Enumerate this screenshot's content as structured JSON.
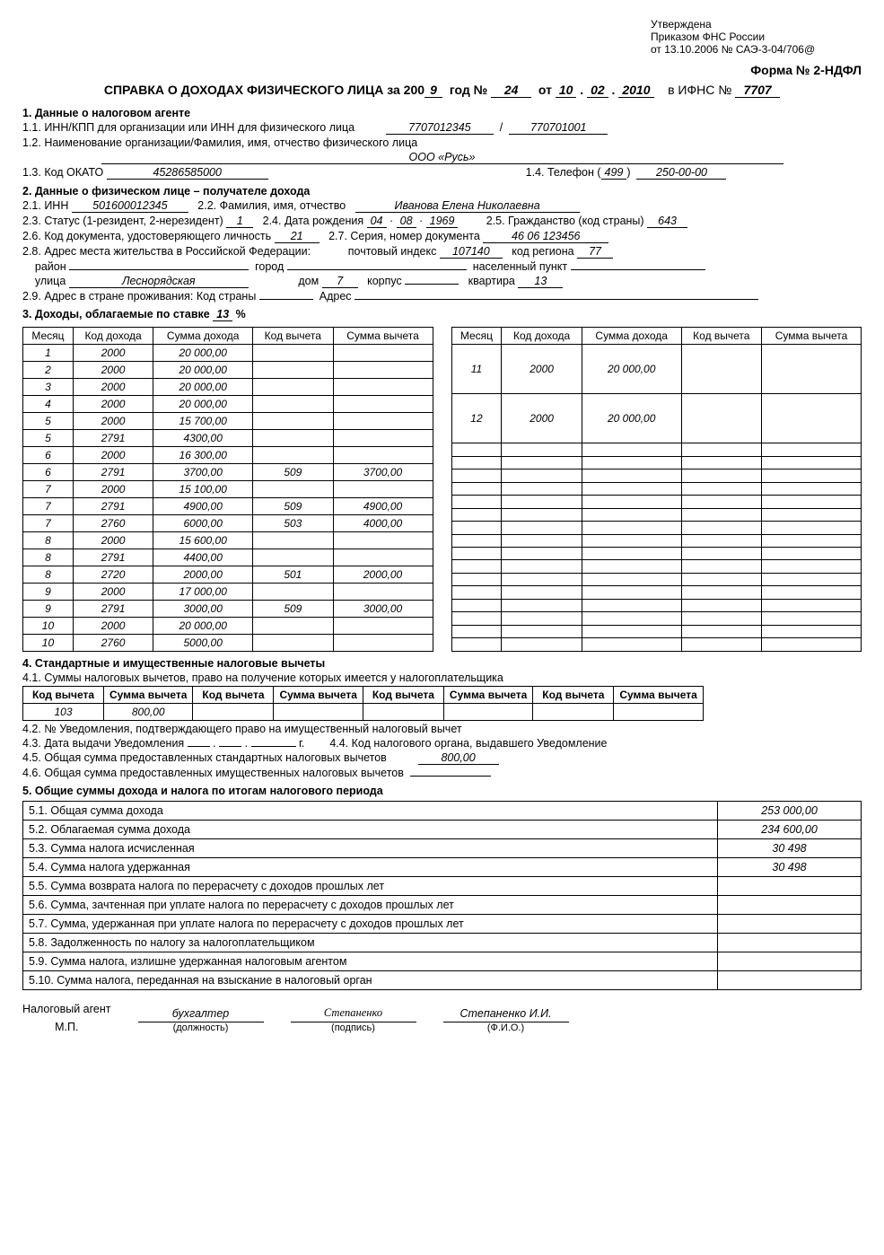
{
  "approval": {
    "line1": "Утверждена",
    "line2": "Приказом ФНС России",
    "line3": "от 13.10.2006 № САЭ-3-04/706@"
  },
  "form_no_label": "Форма № 2-НДФЛ",
  "title": {
    "prefix": "СПРАВКА О ДОХОДАХ ФИЗИЧЕСКОГО ЛИЦА за 200",
    "year_suffix": "9",
    "god_no": "год №",
    "no": "24",
    "ot": "от",
    "date_d": "10",
    "date_m": "02",
    "date_y": "2010",
    "ifns_label": "в ИФНС №",
    "ifns": "7707"
  },
  "s1": {
    "header": "1. Данные о налоговом агенте",
    "l11": "1.1. ИНН/КПП для организации или ИНН для физического лица",
    "inn": "7707012345",
    "kpp": "770701001",
    "l12": "1.2. Наименование организации/Фамилия, имя, отчество физического лица",
    "org": "ООО «Русь»",
    "l13": "1.3. Код ОКАТО",
    "okato": "45286585000",
    "l14": "1.4. Телефон (",
    "tel_code": "499",
    "tel_close": ")",
    "tel": "250-00-00"
  },
  "s2": {
    "header": "2. Данные о физическом лице – получателе дохода",
    "l21": "2.1. ИНН",
    "inn": "501600012345",
    "l22": "2.2. Фамилия, имя, отчество",
    "fio": "Иванова Елена Николаевна",
    "l23": "2.3. Статус (1-резидент, 2-нерезидент)",
    "status": "1",
    "l24": "2.4. Дата рождения",
    "dob_d": "04",
    "dob_m": "08",
    "dob_y": "1969",
    "l25": "2.5. Гражданство (код страны)",
    "citizenship": "643",
    "l26": "2.6. Код документа, удостоверяющего личность",
    "doc_code": "21",
    "l27": "2.7. Серия, номер документа",
    "doc_no": "46 06 123456",
    "l28": "2.8. Адрес места жительства в Российской Федерации:",
    "post_label": "почтовый индекс",
    "post": "107140",
    "region_label": "код региона",
    "region": "77",
    "raion": "район",
    "gorod": "город",
    "np": "населенный пункт",
    "ulica_label": "улица",
    "ulica": "Леснорядская",
    "dom_label": "дом",
    "dom": "7",
    "korpus_label": "корпус",
    "korpus": "",
    "kv_label": "квартира",
    "kv": "13",
    "l29": "2.9. Адрес в стране проживания: Код страны",
    "addr_label": "Адрес"
  },
  "s3": {
    "header_prefix": "3. Доходы, облагаемые по ставке",
    "rate": "13",
    "pct": "%",
    "cols": [
      "Месяц",
      "Код дохода",
      "Сумма дохода",
      "Код вычета",
      "Сумма вычета"
    ],
    "left": [
      [
        "1",
        "2000",
        "20 000,00",
        "",
        ""
      ],
      [
        "2",
        "2000",
        "20 000,00",
        "",
        ""
      ],
      [
        "3",
        "2000",
        "20 000,00",
        "",
        ""
      ],
      [
        "4",
        "2000",
        "20 000,00",
        "",
        ""
      ],
      [
        "5",
        "2000",
        "15 700,00",
        "",
        ""
      ],
      [
        "5",
        "2791",
        "4300,00",
        "",
        ""
      ],
      [
        "6",
        "2000",
        "16 300,00",
        "",
        ""
      ],
      [
        "6",
        "2791",
        "3700,00",
        "509",
        "3700,00"
      ],
      [
        "7",
        "2000",
        "15 100,00",
        "",
        ""
      ],
      [
        "7",
        "2791",
        "4900,00",
        "509",
        "4900,00"
      ],
      [
        "7",
        "2760",
        "6000,00",
        "503",
        "4000,00"
      ],
      [
        "8",
        "2000",
        "15 600,00",
        "",
        ""
      ],
      [
        "8",
        "2791",
        "4400,00",
        "",
        ""
      ],
      [
        "8",
        "2720",
        "2000,00",
        "501",
        "2000,00"
      ],
      [
        "9",
        "2000",
        "17 000,00",
        "",
        ""
      ],
      [
        "9",
        "2791",
        "3000,00",
        "509",
        "3000,00"
      ],
      [
        "10",
        "2000",
        "20 000,00",
        "",
        ""
      ],
      [
        "10",
        "2760",
        "5000,00",
        "",
        ""
      ]
    ],
    "right": [
      [
        "11",
        "2000",
        "20 000,00",
        "",
        ""
      ],
      [
        "12",
        "2000",
        "20 000,00",
        "",
        ""
      ],
      [
        "",
        "",
        "",
        "",
        ""
      ],
      [
        "",
        "",
        "",
        "",
        ""
      ],
      [
        "",
        "",
        "",
        "",
        ""
      ],
      [
        "",
        "",
        "",
        "",
        ""
      ],
      [
        "",
        "",
        "",
        "",
        ""
      ],
      [
        "",
        "",
        "",
        "",
        ""
      ],
      [
        "",
        "",
        "",
        "",
        ""
      ],
      [
        "",
        "",
        "",
        "",
        ""
      ],
      [
        "",
        "",
        "",
        "",
        ""
      ],
      [
        "",
        "",
        "",
        "",
        ""
      ],
      [
        "",
        "",
        "",
        "",
        ""
      ],
      [
        "",
        "",
        "",
        "",
        ""
      ],
      [
        "",
        "",
        "",
        "",
        ""
      ],
      [
        "",
        "",
        "",
        "",
        ""
      ],
      [
        "",
        "",
        "",
        "",
        ""
      ],
      [
        "",
        "",
        "",
        "",
        ""
      ]
    ]
  },
  "s4": {
    "header": "4. Стандартные и имущественные налоговые вычеты",
    "l41": "4.1. Суммы налоговых вычетов, право на получение которых имеется у налогоплательщика",
    "dcols": [
      "Код вычета",
      "Сумма вычета",
      "Код вычета",
      "Сумма вычета",
      "Код вычета",
      "Сумма вычета",
      "Код вычета",
      "Сумма вычета"
    ],
    "drow": [
      "103",
      "800,00",
      "",
      "",
      "",
      "",
      "",
      ""
    ],
    "l42": "4.2. № Уведомления, подтверждающего право на имущественный налоговый вычет",
    "l43": "4.3. Дата выдачи Уведомления",
    "l43_g": "г.",
    "l44": "4.4. Код налогового органа, выдавшего Уведомление",
    "l45": "4.5. Общая сумма предоставленных стандартных налоговых вычетов",
    "v45": "800,00",
    "l46": "4.6. Общая сумма предоставленных имущественных налоговых вычетов"
  },
  "s5": {
    "header": "5. Общие суммы дохода и налога по итогам налогового периода",
    "rows": [
      [
        "5.1. Общая сумма дохода",
        "253 000,00"
      ],
      [
        "5.2. Облагаемая сумма дохода",
        "234 600,00"
      ],
      [
        "5.3. Сумма налога исчисленная",
        "30 498"
      ],
      [
        "5.4. Сумма налога удержанная",
        "30 498"
      ],
      [
        "5.5. Сумма возврата налога по перерасчету с доходов прошлых лет",
        ""
      ],
      [
        "5.6. Сумма, зачтенная при уплате налога по перерасчету с доходов прошлых лет",
        ""
      ],
      [
        "5.7. Сумма, удержанная при уплате налога по перерасчету с доходов прошлых лет",
        ""
      ],
      [
        "5.8. Задолженность по налогу за налогоплательщиком",
        ""
      ],
      [
        "5.9. Сумма налога, излишне удержанная налоговым агентом",
        ""
      ],
      [
        "5.10. Сумма налога, переданная на взыскание в налоговый орган",
        ""
      ]
    ]
  },
  "sign": {
    "agent": "Налоговый агент",
    "mp": "М.П.",
    "position": "бухгалтер",
    "position_cap": "(должность)",
    "signature": "Степаненко",
    "signature_cap": "(подпись)",
    "fio": "Степаненко И.И.",
    "fio_cap": "(Ф.И.О.)"
  }
}
